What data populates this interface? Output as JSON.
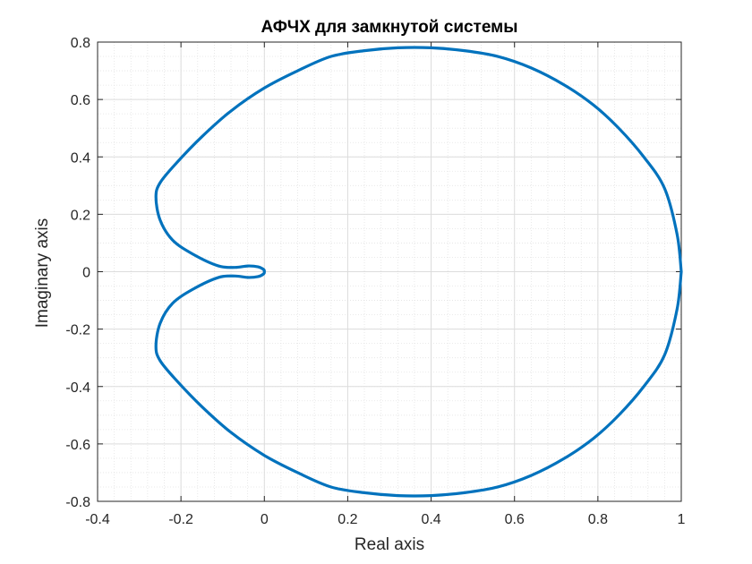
{
  "chart_data": {
    "type": "line",
    "title": "АФЧХ для замкнутой системы",
    "xlabel": "Real axis",
    "ylabel": "Imaginary axis",
    "xlim": [
      -0.4,
      1.0
    ],
    "ylim": [
      -0.8,
      0.8
    ],
    "xticks": [
      -0.4,
      -0.2,
      0,
      0.2,
      0.4,
      0.6,
      0.8,
      1.0
    ],
    "xtick_labels": [
      "-0.4",
      "-0.2",
      "0",
      "0.2",
      "0.4",
      "0.6",
      "0.8",
      "1"
    ],
    "yticks": [
      -0.8,
      -0.6,
      -0.4,
      -0.2,
      0,
      0.2,
      0.4,
      0.6,
      0.8
    ],
    "ytick_labels": [
      "-0.8",
      "-0.6",
      "-0.4",
      "-0.2",
      "0",
      "0.2",
      "0.4",
      "0.6",
      "0.8"
    ],
    "grid": true,
    "minor_grid": true,
    "series": [
      {
        "color": "#0072BD",
        "x": [
          1.0,
          0.99,
          0.96,
          0.91,
          0.85,
          0.79,
          0.72,
          0.64,
          0.56,
          0.48,
          0.4,
          0.32,
          0.24,
          0.16,
          0.08,
          0.0,
          -0.08,
          -0.15,
          -0.21,
          -0.25,
          -0.26,
          -0.25,
          -0.22,
          -0.17,
          -0.11,
          -0.07,
          -0.04,
          -0.015,
          -0.002,
          0.0,
          -0.002,
          -0.015,
          -0.04,
          -0.07,
          -0.11,
          -0.17,
          -0.22,
          -0.25,
          -0.26,
          -0.25,
          -0.21,
          -0.15,
          -0.08,
          0.0,
          0.08,
          0.16,
          0.24,
          0.32,
          0.4,
          0.48,
          0.56,
          0.64,
          0.72,
          0.79,
          0.85,
          0.91,
          0.96,
          0.99,
          1.0
        ],
        "y": [
          0.0,
          0.13,
          0.29,
          0.4,
          0.5,
          0.58,
          0.65,
          0.71,
          0.75,
          0.77,
          0.78,
          0.78,
          0.77,
          0.75,
          0.7,
          0.64,
          0.56,
          0.47,
          0.38,
          0.31,
          0.26,
          0.18,
          0.11,
          0.06,
          0.02,
          0.015,
          0.02,
          0.017,
          0.008,
          0.0,
          -0.008,
          -0.017,
          -0.02,
          -0.015,
          -0.02,
          -0.06,
          -0.11,
          -0.18,
          -0.26,
          -0.31,
          -0.38,
          -0.47,
          -0.56,
          -0.64,
          -0.7,
          -0.75,
          -0.77,
          -0.78,
          -0.78,
          -0.77,
          -0.75,
          -0.71,
          -0.65,
          -0.58,
          -0.5,
          -0.4,
          -0.29,
          -0.13,
          0.0
        ]
      }
    ]
  }
}
